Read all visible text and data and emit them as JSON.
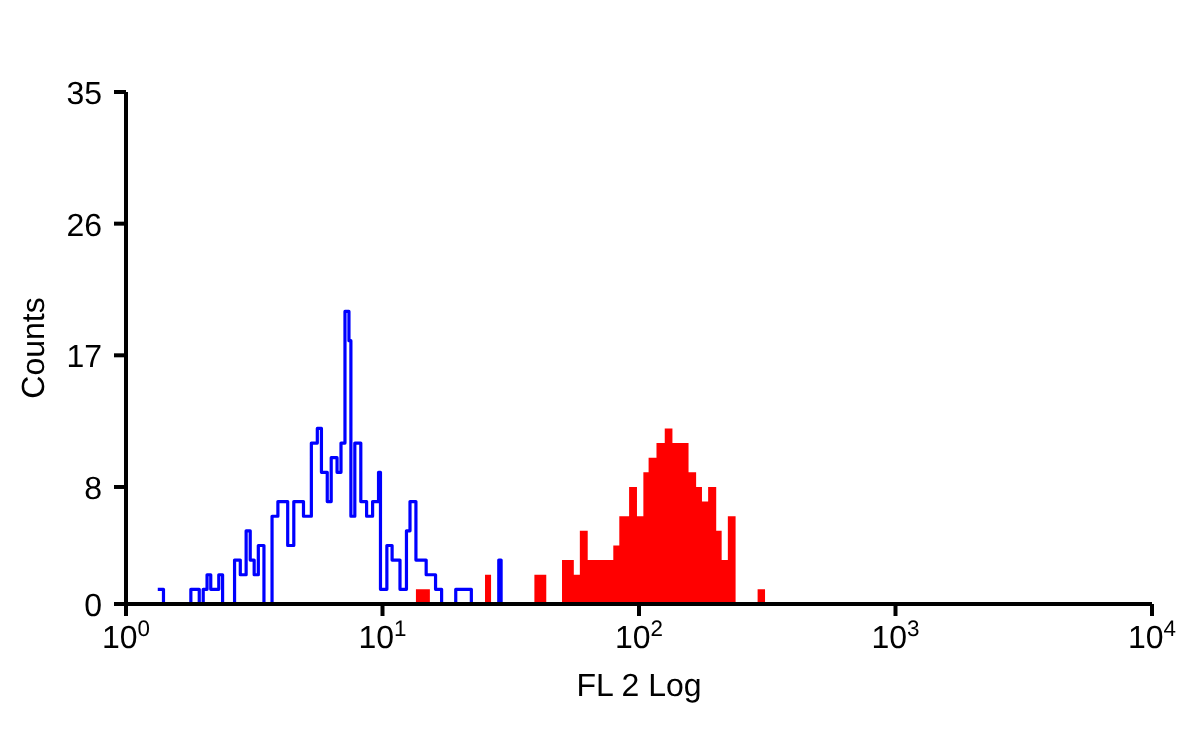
{
  "chart_data": {
    "type": "step",
    "xlabel": "FL 2 Log",
    "ylabel": "Counts",
    "log": "x",
    "xlim": [
      1,
      10000
    ],
    "ylim": [
      0,
      35
    ],
    "xticks": [
      {
        "value": 1,
        "label": "10$^{0}$"
      },
      {
        "value": 10,
        "label": "10$^{1}$"
      },
      {
        "value": 100,
        "label": "10$^{2}$"
      },
      {
        "value": 1000,
        "label": "10$^{3}$"
      },
      {
        "value": 10000,
        "label": "10$^{4}$"
      }
    ],
    "yticks": [
      0,
      8,
      17,
      26,
      35
    ],
    "grid": false,
    "legend": false,
    "marker": "none",
    "line_style": "solid",
    "series": [
      {
        "color": "#0000ff",
        "x": [
          1.33,
          1.4,
          1.76,
          1.79,
          1.93,
          2.0,
          2.07,
          2.14,
          2.3,
          2.38,
          2.65,
          2.79,
          2.94,
          3.05,
          3.16,
          3.28,
          3.45,
          3.71,
          3.91,
          4.27,
          4.51,
          4.92,
          5.28,
          5.57,
          5.78,
          6.09,
          6.31,
          6.65,
          6.89,
          7.14,
          7.4,
          7.53,
          7.8,
          8.23,
          8.67,
          9.15,
          9.65,
          9.82,
          10.4,
          10.9,
          11.7,
          12.4,
          12.8,
          13.5,
          14.8,
          16.1,
          17.0,
          19.3,
          21.0,
          22.2,
          28.4,
          29.0
        ],
        "values": [
          1,
          0,
          0,
          1,
          0,
          1,
          2,
          1,
          2,
          0,
          3,
          2,
          5,
          3,
          2,
          4,
          0,
          6,
          7,
          4,
          7,
          6,
          11,
          12,
          9,
          7,
          10,
          9,
          11,
          20,
          18,
          6,
          11,
          7,
          6,
          7,
          9,
          1,
          4,
          3,
          1,
          5,
          7,
          3,
          2,
          1,
          0,
          1,
          1,
          0,
          3,
          0
        ]
      },
      {
        "type": "area",
        "color": "#ff0000",
        "x": [
          13.5,
          14.8,
          15.3,
          25.1,
          26.5,
          39.1,
          42.7,
          43.5,
          50.1,
          52.9,
          55.7,
          58.8,
          63.1,
          68.9,
          75.3,
          79.4,
          83.8,
          91.5,
          98.2,
          104,
          109,
          117,
          126,
          130,
          135,
          148,
          156,
          167,
          176,
          186,
          200,
          210,
          222,
          238,
          290,
          310
        ],
        "values": [
          1,
          1,
          0,
          2,
          0,
          2,
          2,
          0,
          3,
          3,
          2,
          5,
          3,
          3,
          3,
          4,
          6,
          8,
          6,
          9,
          10,
          11,
          12,
          12,
          11,
          11,
          9,
          8,
          7,
          8,
          5,
          3,
          6,
          0,
          1,
          0
        ]
      }
    ]
  }
}
